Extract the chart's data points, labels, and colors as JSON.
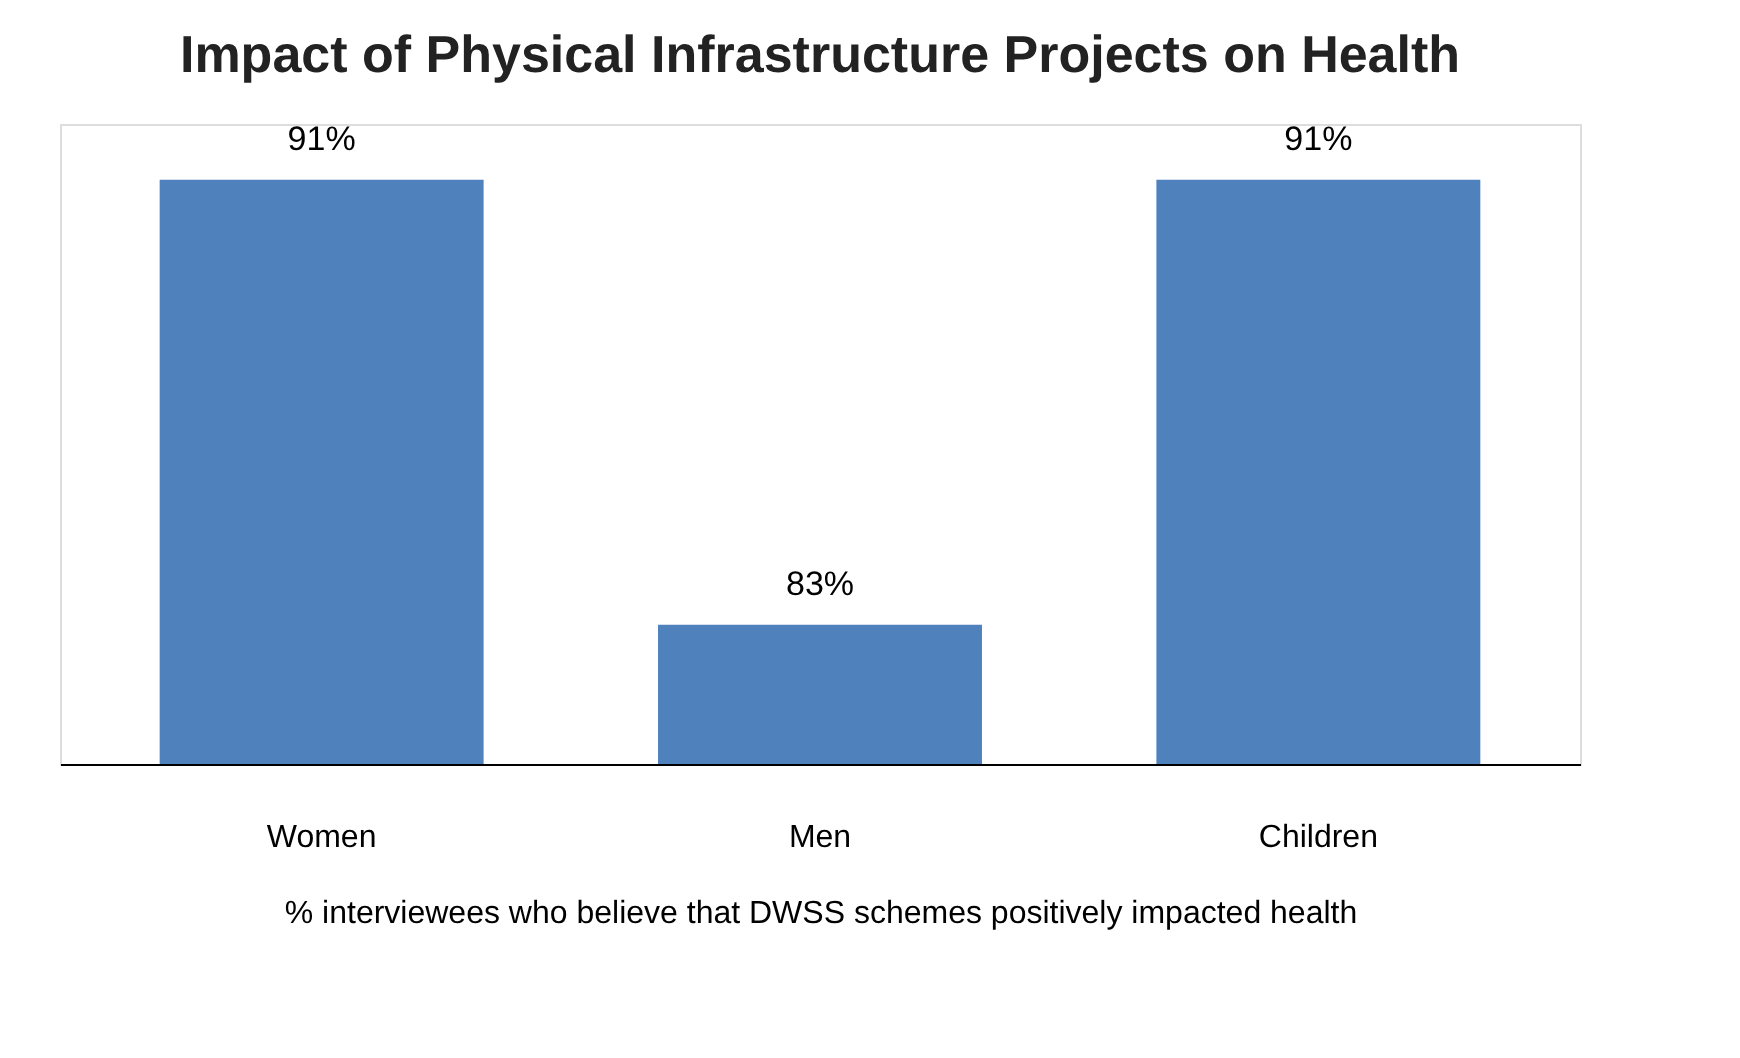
{
  "chart_data": {
    "type": "bar",
    "title": "Impact of Physical Infrastructure Projects on Health",
    "categories": [
      "Women",
      "Men",
      "Children"
    ],
    "values": [
      91,
      83,
      91
    ],
    "color": "#4f81bd",
    "value_labels": [
      "91%",
      "83%",
      "91%"
    ],
    "xlabel": "% interviewees who believe that DWSS schemes positively  impacted health",
    "ylim": [
      80.5,
      92
    ],
    "tick_labels": "x",
    "grid": false
  }
}
